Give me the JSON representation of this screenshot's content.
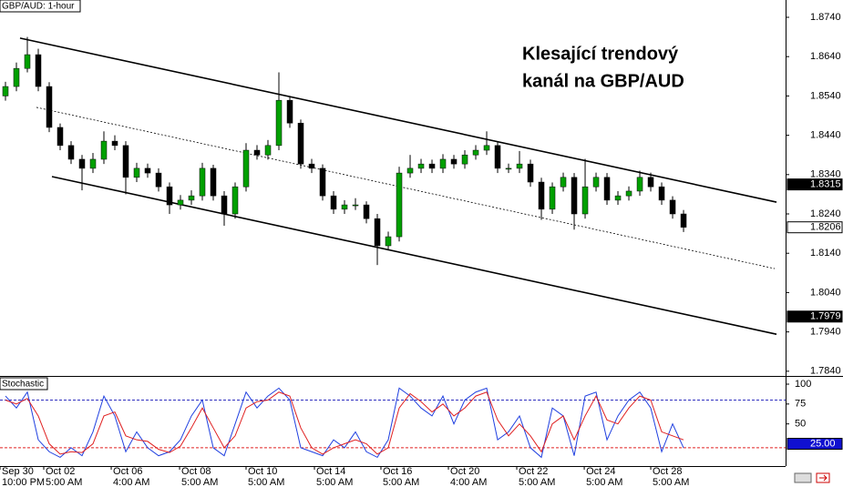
{
  "chart_data": {
    "type": "candlestick",
    "title": "GBP/AUD: 1-hour",
    "annotation": [
      "Klesající trendový",
      "kanál na GBP/AUD"
    ],
    "bull_color": "#00a000",
    "bear_color": "#000000",
    "xlim": [
      -0.5,
      71.33
    ],
    "xticks": [
      {
        "value": -0.5,
        "label": "Sep 30",
        "time": "10:00 PM"
      },
      {
        "value": 3.5,
        "label": "Oct 02",
        "time": "5:00 AM"
      },
      {
        "value": 9.67,
        "label": "Oct 06",
        "time": "4:00 AM"
      },
      {
        "value": 15.92,
        "label": "Oct 08",
        "time": "5:00 AM"
      },
      {
        "value": 22,
        "label": "Oct 10",
        "time": "5:00 AM"
      },
      {
        "value": 28.25,
        "label": "Oct 14",
        "time": "5:00 AM"
      },
      {
        "value": 34.33,
        "label": "Oct 16",
        "time": "5:00 AM"
      },
      {
        "value": 40.5,
        "label": "Oct 20",
        "time": "4:00 AM"
      },
      {
        "value": 46.75,
        "label": "Oct 22",
        "time": "5:00 AM"
      },
      {
        "value": 52.92,
        "label": "Oct 24",
        "time": "5:00 AM"
      },
      {
        "value": 59,
        "label": "Oct 28",
        "time": "5:00 AM"
      }
    ],
    "ylim": [
      1.7828,
      1.8784
    ],
    "yticks": [
      {
        "value": 1.874,
        "label": "1.8740"
      },
      {
        "value": 1.864,
        "label": "1.8640"
      },
      {
        "value": 1.854,
        "label": "1.8540"
      },
      {
        "value": 1.844,
        "label": "1.8440"
      },
      {
        "value": 1.834,
        "label": "1.8340"
      },
      {
        "value": 1.824,
        "label": "1.8240"
      },
      {
        "value": 1.814,
        "label": "1.8140"
      },
      {
        "value": 1.804,
        "label": "1.8040"
      },
      {
        "value": 1.794,
        "label": "1.7940"
      },
      {
        "value": 1.784,
        "label": "1.7840"
      }
    ],
    "price_markers": [
      {
        "value": 1.8315,
        "label": "1.8315",
        "style": "dark"
      },
      {
        "value": 1.8206,
        "label": "1.8206",
        "style": "light"
      },
      {
        "value": 1.7979,
        "label": "1.7979",
        "style": "dark"
      }
    ],
    "open": [
      1.854,
      1.8564,
      1.861,
      1.8645,
      1.8564,
      1.846,
      1.8414,
      1.8379,
      1.8356,
      1.8379,
      1.8425,
      1.8414,
      1.8333,
      1.8356,
      1.8344,
      1.8309,
      1.8263,
      1.8275,
      1.8286,
      1.8356,
      1.8286,
      1.824,
      1.8309,
      1.8402,
      1.839,
      1.8414,
      1.8529,
      1.8471,
      1.8367,
      1.8356,
      1.8286,
      1.8252,
      1.8263,
      1.8263,
      1.8228,
      1.8159,
      1.8182,
      1.8344,
      1.8356,
      1.8367,
      1.8356,
      1.8379,
      1.8367,
      1.839,
      1.8402,
      1.8414,
      1.8356,
      1.8356,
      1.8367,
      1.8321,
      1.8252,
      1.8309,
      1.8333,
      1.824,
      1.8309,
      1.8333,
      1.8275,
      1.8286,
      1.8298,
      1.8333,
      1.8309,
      1.8275,
      1.824
    ],
    "high": [
      1.8576,
      1.8625,
      1.869,
      1.866,
      1.8575,
      1.847,
      1.8425,
      1.839,
      1.8395,
      1.845,
      1.844,
      1.8425,
      1.837,
      1.8368,
      1.8356,
      1.832,
      1.8288,
      1.83,
      1.837,
      1.8365,
      1.8298,
      1.832,
      1.842,
      1.8415,
      1.8428,
      1.86,
      1.854,
      1.848,
      1.838,
      1.8366,
      1.8298,
      1.8275,
      1.828,
      1.8272,
      1.824,
      1.8195,
      1.836,
      1.839,
      1.838,
      1.8378,
      1.8392,
      1.839,
      1.8402,
      1.8415,
      1.845,
      1.8425,
      1.8368,
      1.84,
      1.8378,
      1.8332,
      1.832,
      1.8345,
      1.8344,
      1.838,
      1.8345,
      1.8344,
      1.8298,
      1.831,
      1.835,
      1.8345,
      1.832,
      1.8285,
      1.825
    ],
    "low": [
      1.8528,
      1.8552,
      1.86,
      1.8552,
      1.8448,
      1.8402,
      1.8367,
      1.83,
      1.8344,
      1.8367,
      1.8402,
      1.829,
      1.8321,
      1.8332,
      1.8297,
      1.824,
      1.8251,
      1.8263,
      1.8274,
      1.8274,
      1.821,
      1.8228,
      1.8297,
      1.8378,
      1.8378,
      1.8402,
      1.8459,
      1.8355,
      1.8344,
      1.8274,
      1.824,
      1.824,
      1.825,
      1.8216,
      1.811,
      1.8147,
      1.817,
      1.8332,
      1.8344,
      1.8344,
      1.8344,
      1.8355,
      1.8355,
      1.8378,
      1.839,
      1.8344,
      1.8344,
      1.8344,
      1.8309,
      1.8225,
      1.824,
      1.8297,
      1.82,
      1.8228,
      1.8297,
      1.8263,
      1.8263,
      1.8274,
      1.8286,
      1.8297,
      1.8263,
      1.8228,
      1.8194
    ],
    "close": [
      1.8564,
      1.861,
      1.8645,
      1.8564,
      1.846,
      1.8414,
      1.8379,
      1.8356,
      1.8379,
      1.8425,
      1.8414,
      1.8333,
      1.8356,
      1.8344,
      1.8309,
      1.8263,
      1.8275,
      1.8286,
      1.8356,
      1.8286,
      1.824,
      1.8309,
      1.8402,
      1.839,
      1.8414,
      1.8529,
      1.8471,
      1.8367,
      1.8356,
      1.8286,
      1.8252,
      1.8263,
      1.8263,
      1.8228,
      1.8159,
      1.8182,
      1.8344,
      1.8356,
      1.8367,
      1.8356,
      1.8379,
      1.8367,
      1.839,
      1.8402,
      1.8414,
      1.8356,
      1.8356,
      1.8367,
      1.8321,
      1.8252,
      1.8309,
      1.8333,
      1.824,
      1.8309,
      1.8333,
      1.8275,
      1.8286,
      1.8298,
      1.8333,
      1.8309,
      1.8275,
      1.824,
      1.8206
    ],
    "lines": [
      {
        "x": [
          1.33,
          70.5
        ],
        "y": [
          1.8687,
          1.827
        ],
        "style": "solid"
      },
      {
        "x": [
          2.83,
          70.33
        ],
        "y": [
          1.8511,
          1.8101
        ],
        "style": "dotted"
      },
      {
        "x": [
          4.25,
          70.5
        ],
        "y": [
          1.8335,
          1.7934
        ],
        "style": "solid"
      }
    ],
    "indicator": {
      "title": "Stochastic",
      "ylim": [
        -3,
        108
      ],
      "yticks": [
        100,
        75,
        50
      ],
      "levels": [
        {
          "value": 80,
          "color": "#3030c0"
        },
        {
          "value": 20,
          "color": "#e02020"
        }
      ],
      "marker": {
        "value": 25,
        "label": "25.00"
      },
      "series": [
        {
          "color": "#2040e0",
          "values": [
            85,
            70,
            90,
            30,
            15,
            8,
            20,
            10,
            40,
            85,
            60,
            15,
            40,
            20,
            10,
            15,
            30,
            60,
            80,
            20,
            10,
            50,
            90,
            70,
            85,
            95,
            80,
            20,
            15,
            10,
            30,
            20,
            40,
            15,
            8,
            30,
            95,
            85,
            70,
            60,
            85,
            50,
            80,
            90,
            95,
            30,
            40,
            60,
            20,
            8,
            70,
            60,
            10,
            85,
            90,
            30,
            60,
            80,
            90,
            70,
            15,
            50,
            20
          ]
        },
        {
          "color": "#e02020",
          "values": [
            80,
            75,
            82,
            60,
            25,
            12,
            15,
            14,
            25,
            60,
            65,
            35,
            30,
            28,
            18,
            14,
            22,
            45,
            70,
            45,
            20,
            35,
            70,
            78,
            80,
            90,
            85,
            45,
            20,
            12,
            20,
            25,
            30,
            25,
            12,
            20,
            70,
            88,
            78,
            65,
            75,
            60,
            70,
            85,
            90,
            55,
            35,
            50,
            35,
            15,
            50,
            60,
            30,
            60,
            85,
            55,
            50,
            70,
            85,
            80,
            40,
            35,
            30
          ]
        }
      ]
    }
  }
}
